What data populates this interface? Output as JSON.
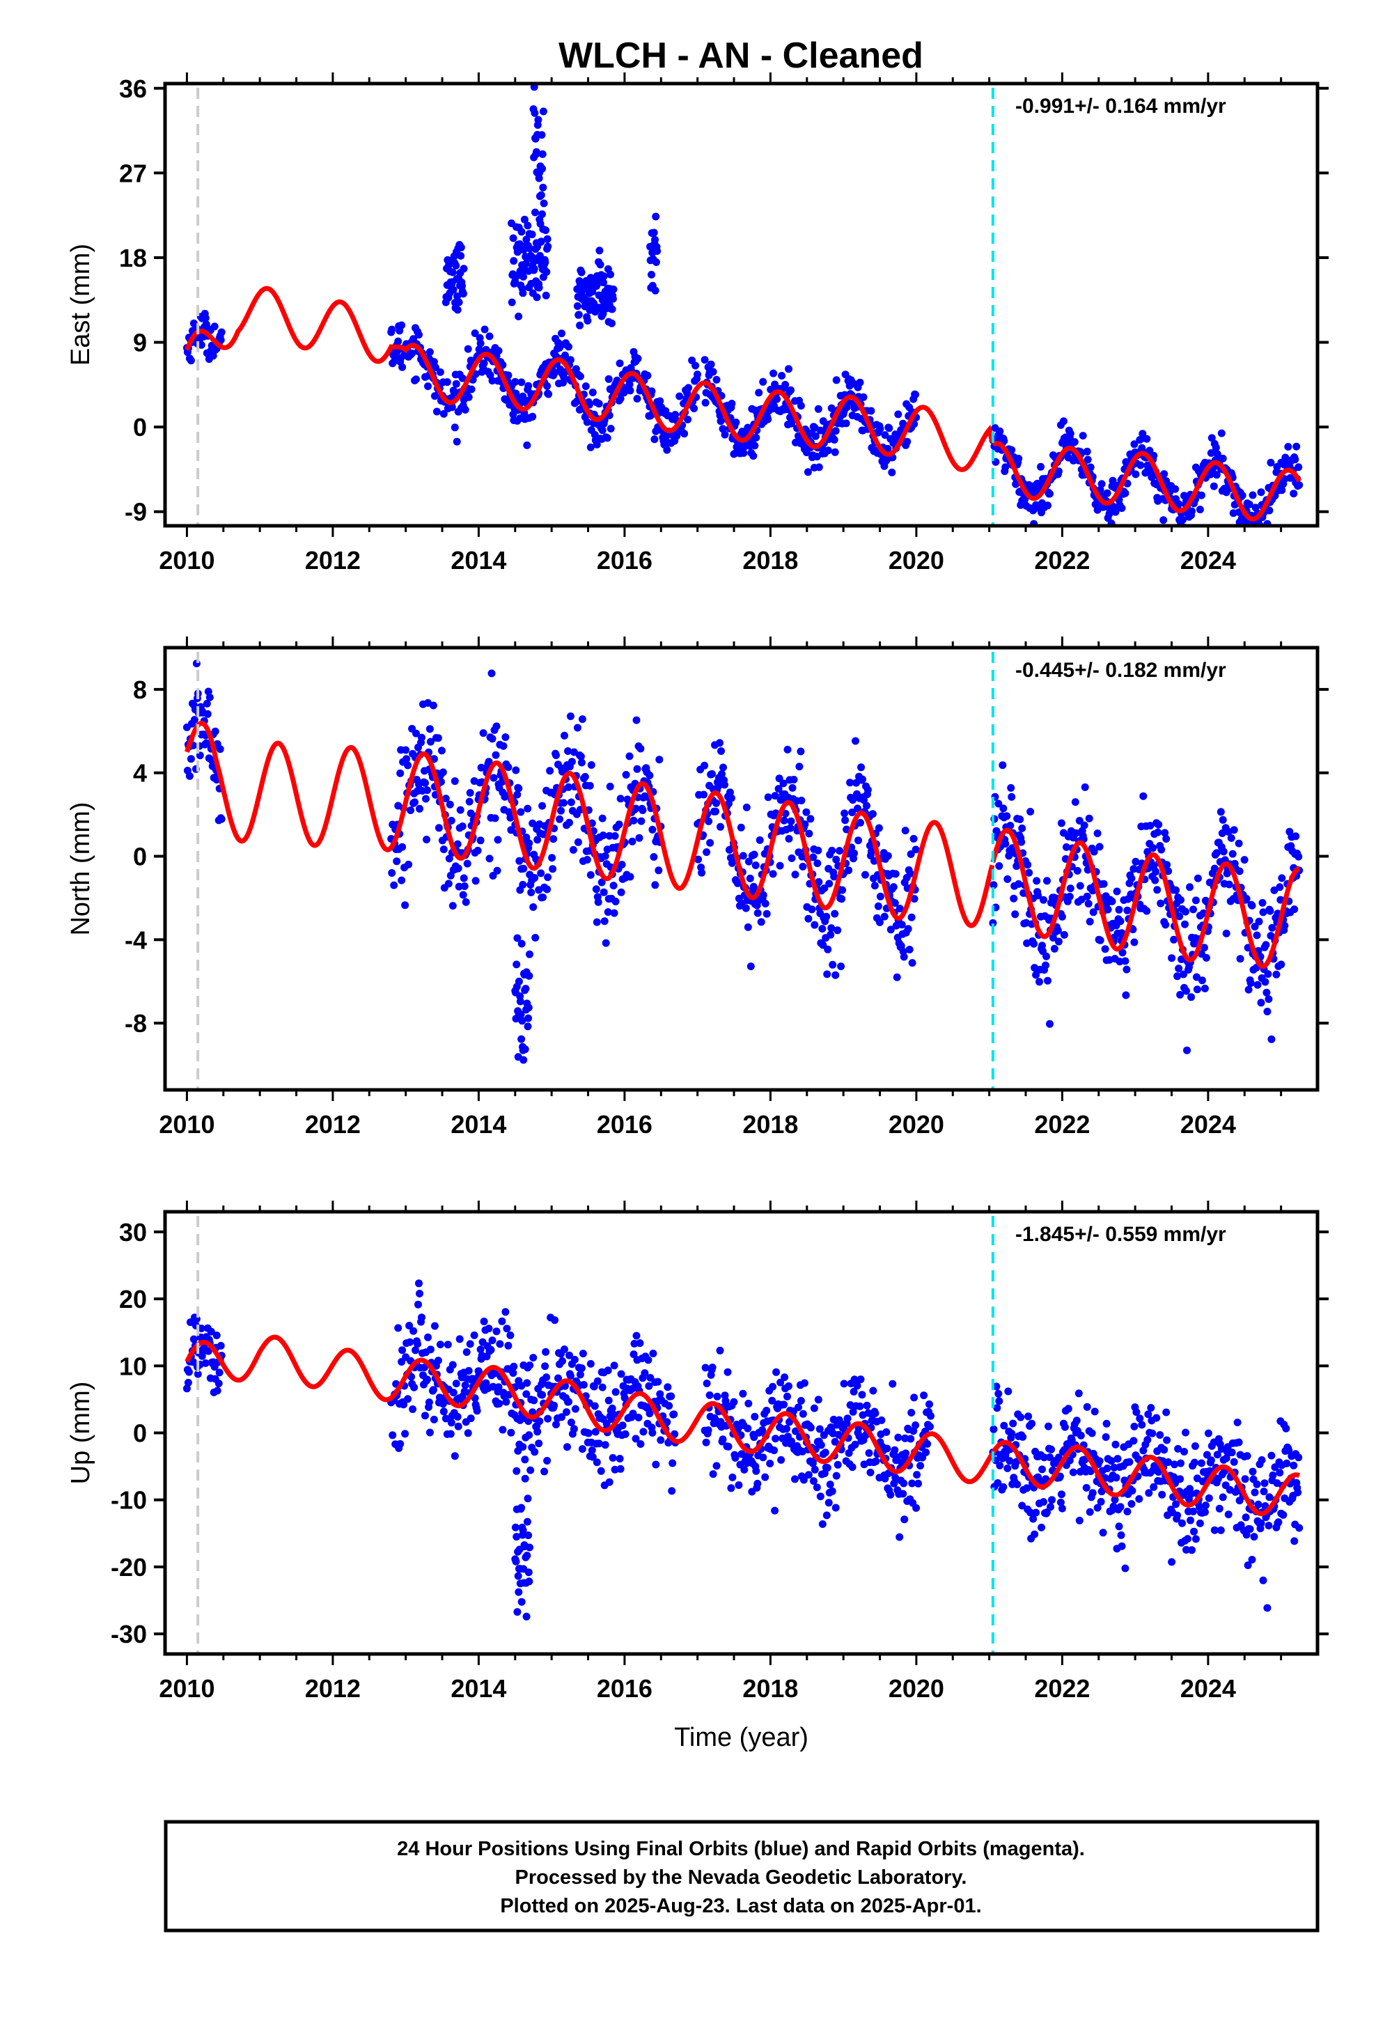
{
  "title": "WLCH  - AN - Cleaned",
  "colors": {
    "final_orbits": "#0000ff",
    "model_fit": "#ff0000",
    "antenna_change": "#cccccc",
    "equipment_change": "#00e5ee",
    "frame": "#000000"
  },
  "chart_data": [
    {
      "type": "scatter",
      "panel": "east",
      "ylabel": "East (mm)",
      "xlabel": "",
      "xlim": [
        2009.7,
        2025.5
      ],
      "ylim": [
        -10.5,
        36.5
      ],
      "yticks": [
        -9,
        0,
        9,
        18,
        27,
        36
      ],
      "xticks": [
        2010,
        2012,
        2014,
        2016,
        2018,
        2020,
        2022,
        2024
      ],
      "rate": "-0.991+/- 0.164 mm/yr",
      "grid": false,
      "antenna_change_epoch": 2010.15,
      "equipment_change_epoch": 2021.05,
      "observation_segments": [
        {
          "start": 2010.0,
          "end": 2010.48,
          "spread": 1.0
        },
        {
          "start": 2012.8,
          "end": 2017.0,
          "spread": 1.3
        },
        {
          "start": 2017.1,
          "end": 2020.0,
          "spread": 1.3
        },
        {
          "start": 2021.05,
          "end": 2025.25,
          "spread": 1.2
        }
      ],
      "observation_bursts": [
        {
          "start": 2013.55,
          "end": 2013.8,
          "level": 16,
          "spread": 2
        },
        {
          "start": 2014.45,
          "end": 2014.95,
          "level": 18,
          "spread": 3
        },
        {
          "start": 2014.75,
          "end": 2014.9,
          "level": 30,
          "spread": 4
        },
        {
          "start": 2015.35,
          "end": 2015.85,
          "level": 14,
          "spread": 1.5
        },
        {
          "start": 2016.35,
          "end": 2016.45,
          "level": 18,
          "spread": 2
        }
      ],
      "model": {
        "trend": [
          [
            2010.0,
            6.0
          ],
          [
            2010.7,
            12.5
          ],
          [
            2012.8,
            9.5
          ],
          [
            2013.0,
            6.0
          ],
          [
            2014.0,
            5.0
          ],
          [
            2015.0,
            4.5
          ],
          [
            2016.0,
            3.0
          ],
          [
            2017.0,
            2.0
          ],
          [
            2018.0,
            1.0
          ],
          [
            2019.0,
            0.5
          ],
          [
            2020.0,
            -0.5
          ],
          [
            2021.0,
            -2.5
          ],
          [
            2021.05,
            -4.5
          ],
          [
            2022.0,
            -5.0
          ],
          [
            2023.0,
            -5.5
          ],
          [
            2024.0,
            -6.5
          ],
          [
            2025.25,
            -7.5
          ]
        ],
        "annual_amplitude": 2.8,
        "phase": 0.9
      }
    },
    {
      "type": "scatter",
      "panel": "north",
      "ylabel": "North (mm)",
      "xlabel": "",
      "xlim": [
        2009.7,
        2025.5
      ],
      "ylim": [
        -11.2,
        10.0
      ],
      "yticks": [
        -8,
        -4,
        0,
        4,
        8
      ],
      "xticks": [
        2010,
        2012,
        2014,
        2016,
        2018,
        2020,
        2022,
        2024
      ],
      "rate": "-0.445+/- 0.182 mm/yr",
      "grid": false,
      "antenna_change_epoch": 2010.15,
      "equipment_change_epoch": 2021.05,
      "observation_segments": [
        {
          "start": 2010.0,
          "end": 2010.48,
          "spread": 1.2
        },
        {
          "start": 2012.8,
          "end": 2016.5,
          "spread": 1.6
        },
        {
          "start": 2017.0,
          "end": 2020.0,
          "spread": 1.5
        },
        {
          "start": 2021.05,
          "end": 2025.25,
          "spread": 1.4
        }
      ],
      "observation_bursts": [
        {
          "start": 2014.5,
          "end": 2014.7,
          "level": -7,
          "spread": 1.8
        }
      ],
      "model": {
        "trend": [
          [
            2010.0,
            5.0
          ],
          [
            2010.4,
            3.2
          ],
          [
            2012.8,
            2.7
          ],
          [
            2014.0,
            2.2
          ],
          [
            2016.0,
            1.2
          ],
          [
            2018.0,
            0.3
          ],
          [
            2020.0,
            -0.7
          ],
          [
            2021.0,
            -1.0
          ],
          [
            2022.0,
            -1.6
          ],
          [
            2023.0,
            -2.2
          ],
          [
            2024.0,
            -2.7
          ],
          [
            2025.25,
            -3.0
          ]
        ],
        "annual_amplitude": 2.4,
        "phase": 0.0
      }
    },
    {
      "type": "scatter",
      "panel": "up",
      "ylabel": "Up (mm)",
      "xlabel": "Time (year)",
      "xlim": [
        2009.7,
        2025.5
      ],
      "ylim": [
        -33,
        33
      ],
      "yticks": [
        -30,
        -20,
        -10,
        0,
        10,
        20,
        30
      ],
      "xticks": [
        2010,
        2012,
        2014,
        2016,
        2018,
        2020,
        2022,
        2024
      ],
      "rate": "-1.845+/- 0.559 mm/yr",
      "grid": false,
      "antenna_change_epoch": 2010.15,
      "equipment_change_epoch": 2021.05,
      "observation_segments": [
        {
          "start": 2010.0,
          "end": 2010.48,
          "spread": 3.5
        },
        {
          "start": 2012.8,
          "end": 2016.7,
          "spread": 4.5
        },
        {
          "start": 2017.1,
          "end": 2020.2,
          "spread": 4.0
        },
        {
          "start": 2021.05,
          "end": 2025.25,
          "spread": 4.2
        }
      ],
      "observation_bursts": [
        {
          "start": 2014.5,
          "end": 2014.7,
          "level": -18,
          "spread": 5
        }
      ],
      "model": {
        "trend": [
          [
            2010.0,
            10.0
          ],
          [
            2011.0,
            11.5
          ],
          [
            2012.8,
            8.0
          ],
          [
            2014.0,
            7.0
          ],
          [
            2016.0,
            3.0
          ],
          [
            2018.0,
            0.0
          ],
          [
            2020.0,
            -3.0
          ],
          [
            2021.0,
            -4.5
          ],
          [
            2022.0,
            -5.0
          ],
          [
            2023.0,
            -6.5
          ],
          [
            2024.0,
            -8.0
          ],
          [
            2025.25,
            -9.5
          ]
        ],
        "annual_amplitude": 3.2,
        "phase": 0.2
      }
    }
  ],
  "footer": {
    "line1": "24 Hour Positions Using Final Orbits (blue) and Rapid Orbits (magenta).",
    "line2": "Processed by the Nevada Geodetic Laboratory.",
    "line3": "Plotted on 2025-Aug-23. Last data on 2025-Apr-01."
  }
}
